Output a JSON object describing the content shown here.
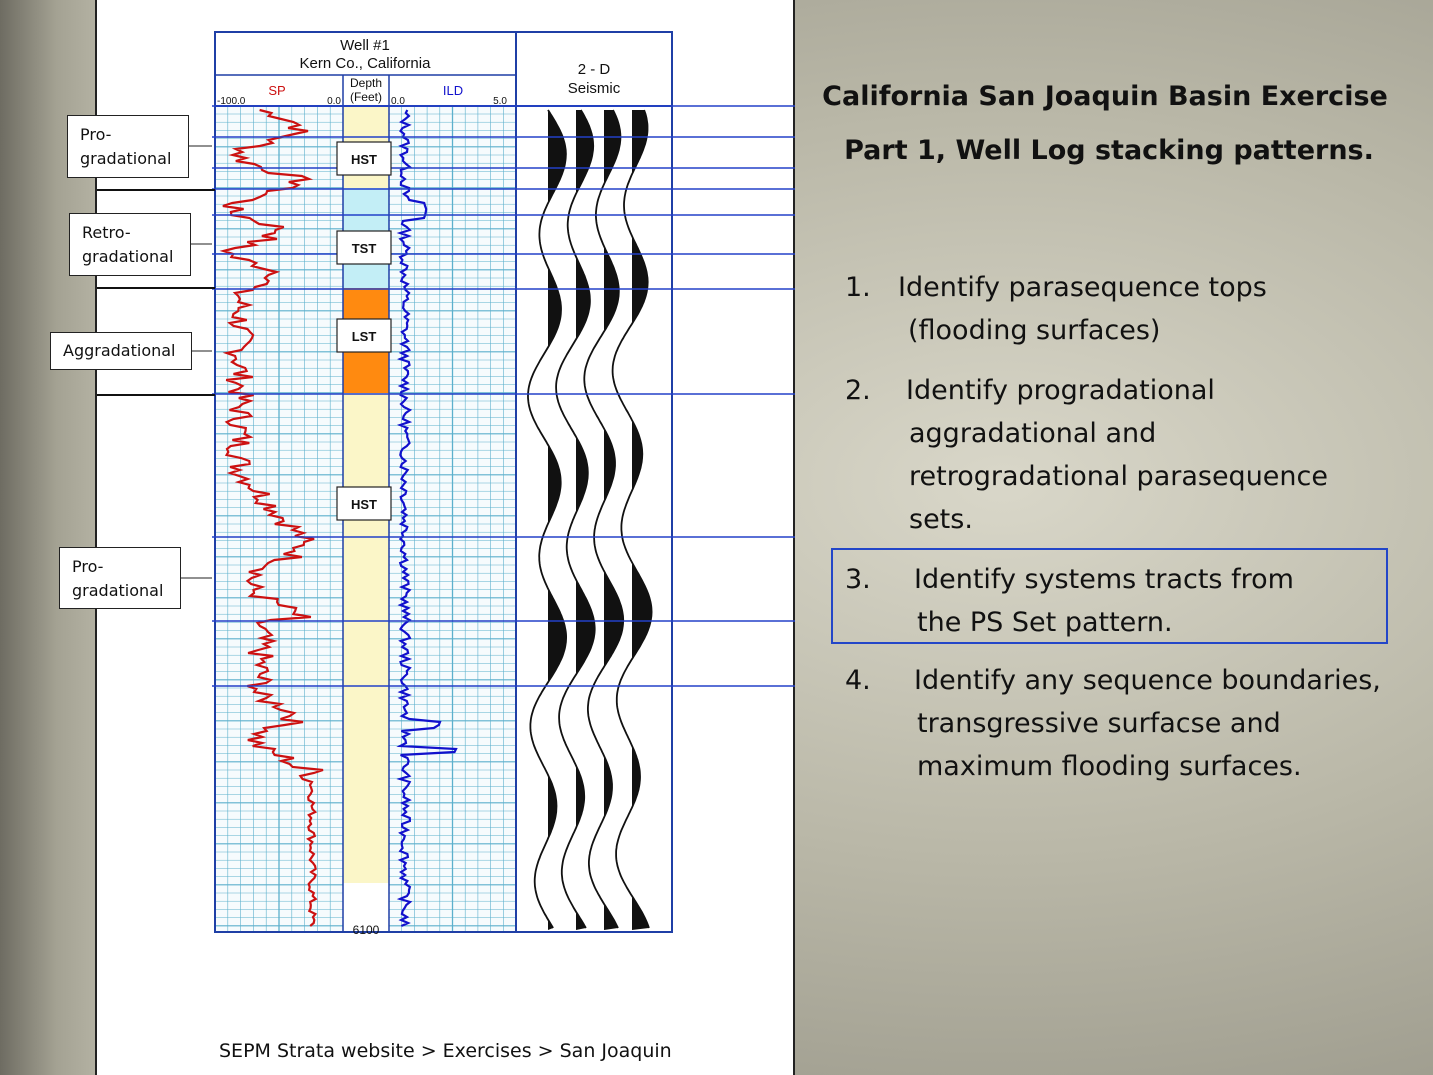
{
  "well_header": {
    "title": "Well #1",
    "location": "Kern Co., California",
    "sp_label": "SP",
    "sp_min": "-100.0",
    "sp_max": "0.0",
    "depth_label_1": "Depth",
    "depth_label_2": "(Feet)",
    "ild_label": "ILD",
    "ild_min": "0.0",
    "ild_max": "5.0",
    "seismic_label_1": "2 - D",
    "seismic_label_2": "Seismic",
    "bottom_depth": "6100"
  },
  "systems_tracts": [
    {
      "label": "HST",
      "color": "#d9f4f8"
    },
    {
      "label": "TST",
      "color": "#c3eef6"
    },
    {
      "label": "LST",
      "color": "#ff8a10"
    },
    {
      "label": "HST",
      "color": "#fbf6c8"
    }
  ],
  "stacking_labels": [
    {
      "line1": "Pro-",
      "line2": "gradational"
    },
    {
      "line1": "Retro-",
      "line2": "gradational"
    },
    {
      "line1": "Aggradational",
      "line2": ""
    },
    {
      "line1": "Pro-",
      "line2": "gradational"
    }
  ],
  "colors": {
    "sp_curve": "#cc1111",
    "ild_curve": "#1111cc",
    "grid": "#5cb0cc",
    "surface_line": "#2340c8",
    "frame": "#1f3fa6"
  },
  "source": "SEPM Strata website > Exercises > San Joaquin",
  "title": {
    "line1": "California San Joaquin Basin Exercise",
    "line2": "Part 1, Well Log stacking patterns."
  },
  "tasks": [
    {
      "number": "1.",
      "lines": [
        "Identify parasequence tops",
        "(flooding surfaces)"
      ]
    },
    {
      "number": "2.",
      "lines": [
        "Identify progradational",
        "aggradational and",
        "retrogradational parasequence",
        "sets."
      ]
    },
    {
      "number": "3.",
      "lines": [
        "Identify systems tracts from",
        "the PS Set pattern."
      ]
    },
    {
      "number": "4.",
      "lines": [
        "Identify any sequence boundaries,",
        "transgressive surfacse and",
        "maximum flooding surfaces."
      ]
    }
  ]
}
